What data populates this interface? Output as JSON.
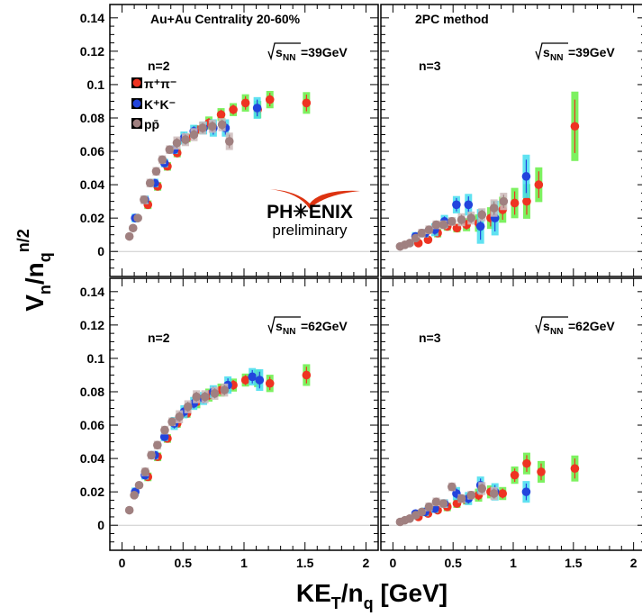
{
  "figure": {
    "xlabel_main": "KE",
    "xlabel_sub": "T",
    "xlabel_rest": "/n",
    "xlabel_sub2": "q",
    "xlabel_unit": " [GeV]",
    "ylabel_main": "V",
    "ylabel_sub": "n",
    "ylabel_rest": "/n",
    "ylabel_sub2": "q",
    "ylabel_sup": "n/2",
    "logo_text": "PH✳ENIX",
    "logo_sub": "preliminary"
  },
  "legend": {
    "pion": "π⁺π⁻",
    "kaon": "K⁺K⁻",
    "proton": "pp̄"
  },
  "colors": {
    "pion": "#ee3322",
    "kaon": "#2244dd",
    "proton": "#a08080",
    "pion_sys": "#66ee44",
    "kaon_sys": "#44ddee",
    "proton_sys": "#ccbbbb",
    "logo_red": "#dd3311"
  },
  "chart_data": [
    {
      "type": "scatter",
      "panel": "top-left",
      "header": "Au+Au Centrality 20-60%",
      "energy": "39GeV",
      "harmonic": "n=2",
      "xlim": [
        -0.1,
        2.1
      ],
      "ylim": [
        -0.015,
        0.148
      ],
      "yticks": [
        "0",
        "0.02",
        "0.04",
        "0.06",
        "0.08",
        "0.1",
        "0.12",
        "0.14"
      ],
      "xticks": [],
      "series": [
        {
          "name": "π⁺π⁻",
          "x": [
            0.2,
            0.28,
            0.36,
            0.44,
            0.52,
            0.6,
            0.7,
            0.8,
            0.9,
            1.0,
            1.1,
            1.2,
            1.5
          ],
          "y": [
            0.028,
            0.039,
            0.051,
            0.059,
            0.068,
            0.073,
            0.077,
            0.082,
            0.085,
            0.089,
            0.085,
            0.091,
            0.089
          ],
          "err": [
            0.002,
            0.002,
            0.002,
            0.002,
            0.002,
            0.002,
            0.003,
            0.003,
            0.003,
            0.004,
            0.004,
            0.004,
            0.005
          ]
        },
        {
          "name": "K⁺K⁻",
          "x": [
            0.12,
            0.2,
            0.28,
            0.36,
            0.44,
            0.52,
            0.6,
            0.68,
            0.76,
            0.86,
            1.12
          ],
          "y": [
            0.02,
            0.031,
            0.041,
            0.053,
            0.061,
            0.068,
            0.072,
            0.074,
            0.074,
            0.074,
            0.086
          ],
          "err": [
            0.002,
            0.002,
            0.002,
            0.002,
            0.002,
            0.003,
            0.003,
            0.003,
            0.004,
            0.004,
            0.005
          ]
        },
        {
          "name": "pp̄",
          "x": [
            0.06,
            0.09,
            0.13,
            0.18,
            0.23,
            0.28,
            0.33,
            0.39,
            0.45,
            0.52,
            0.59,
            0.66,
            0.74,
            0.82,
            0.88
          ],
          "y": [
            0.009,
            0.014,
            0.02,
            0.031,
            0.041,
            0.048,
            0.055,
            0.061,
            0.065,
            0.067,
            0.07,
            0.074,
            0.075,
            0.076,
            0.066
          ],
          "err": [
            0.001,
            0.001,
            0.001,
            0.002,
            0.002,
            0.002,
            0.002,
            0.002,
            0.003,
            0.003,
            0.003,
            0.003,
            0.003,
            0.003,
            0.004
          ]
        }
      ]
    },
    {
      "type": "scatter",
      "panel": "top-right",
      "header": "2PC method",
      "energy": "39GeV",
      "harmonic": "n=3",
      "xlim": [
        -0.1,
        2.1
      ],
      "ylim": [
        -0.015,
        0.148
      ],
      "yticks": [],
      "xticks": [],
      "series": [
        {
          "name": "π⁺π⁻",
          "x": [
            0.2,
            0.28,
            0.36,
            0.44,
            0.52,
            0.6,
            0.7,
            0.8,
            0.9,
            1.0,
            1.1,
            1.2,
            1.5
          ],
          "y": [
            0.005,
            0.007,
            0.011,
            0.015,
            0.014,
            0.016,
            0.017,
            0.02,
            0.025,
            0.029,
            0.03,
            0.04,
            0.075
          ],
          "err": [
            0.001,
            0.001,
            0.002,
            0.002,
            0.002,
            0.003,
            0.004,
            0.005,
            0.006,
            0.007,
            0.008,
            0.008,
            0.016
          ]
        },
        {
          "name": "K⁺K⁻",
          "x": [
            0.2,
            0.28,
            0.36,
            0.44,
            0.54,
            0.64,
            0.74,
            0.86,
            1.12
          ],
          "y": [
            0.009,
            0.011,
            0.013,
            0.018,
            0.028,
            0.028,
            0.015,
            0.02,
            0.045
          ],
          "err": [
            0.002,
            0.002,
            0.003,
            0.003,
            0.004,
            0.005,
            0.008,
            0.008,
            0.01
          ]
        },
        {
          "name": "pp̄",
          "x": [
            0.06,
            0.1,
            0.14,
            0.19,
            0.24,
            0.3,
            0.36,
            0.42,
            0.49,
            0.57,
            0.65,
            0.74,
            0.84,
            0.92
          ],
          "y": [
            0.003,
            0.004,
            0.005,
            0.008,
            0.011,
            0.013,
            0.016,
            0.016,
            0.018,
            0.019,
            0.02,
            0.022,
            0.026,
            0.03
          ],
          "err": [
            0.001,
            0.001,
            0.001,
            0.001,
            0.002,
            0.002,
            0.002,
            0.002,
            0.002,
            0.003,
            0.003,
            0.003,
            0.004,
            0.004
          ]
        }
      ]
    },
    {
      "type": "scatter",
      "panel": "bottom-left",
      "header": "",
      "energy": "62GeV",
      "harmonic": "n=2",
      "xlim": [
        -0.1,
        2.1
      ],
      "ylim": [
        -0.015,
        0.148
      ],
      "yticks": [
        "0",
        "0.02",
        "0.04",
        "0.06",
        "0.08",
        "0.1",
        "0.12",
        "0.14"
      ],
      "xticks": [
        "0",
        "0.5",
        "1",
        "1.5",
        "2"
      ],
      "series": [
        {
          "name": "π⁺π⁻",
          "x": [
            0.2,
            0.28,
            0.36,
            0.44,
            0.52,
            0.6,
            0.7,
            0.8,
            0.9,
            1.0,
            1.1,
            1.2,
            1.5
          ],
          "y": [
            0.029,
            0.041,
            0.052,
            0.061,
            0.067,
            0.074,
            0.078,
            0.081,
            0.084,
            0.087,
            0.088,
            0.085,
            0.09
          ],
          "err": [
            0.002,
            0.002,
            0.002,
            0.002,
            0.002,
            0.003,
            0.003,
            0.003,
            0.003,
            0.003,
            0.004,
            0.004,
            0.005
          ]
        },
        {
          "name": "K⁺K⁻",
          "x": [
            0.12,
            0.2,
            0.28,
            0.36,
            0.44,
            0.52,
            0.6,
            0.68,
            0.76,
            0.88,
            1.08,
            1.14
          ],
          "y": [
            0.02,
            0.03,
            0.042,
            0.053,
            0.061,
            0.068,
            0.073,
            0.076,
            0.08,
            0.084,
            0.089,
            0.087
          ],
          "err": [
            0.002,
            0.002,
            0.002,
            0.002,
            0.003,
            0.003,
            0.003,
            0.003,
            0.003,
            0.004,
            0.004,
            0.005
          ]
        },
        {
          "name": "pp̄",
          "x": [
            0.06,
            0.1,
            0.14,
            0.19,
            0.24,
            0.29,
            0.35,
            0.41,
            0.47,
            0.54,
            0.61,
            0.68,
            0.76,
            0.84
          ],
          "y": [
            0.009,
            0.018,
            0.024,
            0.032,
            0.042,
            0.048,
            0.057,
            0.062,
            0.065,
            0.071,
            0.077,
            0.077,
            0.079,
            0.081
          ],
          "err": [
            0.001,
            0.001,
            0.001,
            0.002,
            0.002,
            0.002,
            0.002,
            0.002,
            0.003,
            0.003,
            0.003,
            0.003,
            0.003,
            0.003
          ]
        }
      ]
    },
    {
      "type": "scatter",
      "panel": "bottom-right",
      "header": "",
      "energy": "62GeV",
      "harmonic": "n=3",
      "xlim": [
        -0.1,
        2.1
      ],
      "ylim": [
        -0.015,
        0.148
      ],
      "yticks": [],
      "xticks": [
        "0",
        "0.5",
        "1",
        "1.5",
        "2"
      ],
      "series": [
        {
          "name": "π⁺π⁻",
          "x": [
            0.2,
            0.28,
            0.36,
            0.44,
            0.52,
            0.6,
            0.7,
            0.8,
            0.9,
            1.0,
            1.1,
            1.22,
            1.5
          ],
          "y": [
            0.005,
            0.007,
            0.009,
            0.011,
            0.013,
            0.015,
            0.018,
            0.02,
            0.019,
            0.03,
            0.037,
            0.032,
            0.034
          ],
          "err": [
            0.001,
            0.001,
            0.001,
            0.002,
            0.002,
            0.002,
            0.003,
            0.003,
            0.003,
            0.004,
            0.005,
            0.005,
            0.006
          ]
        },
        {
          "name": "K⁺K⁻",
          "x": [
            0.2,
            0.28,
            0.36,
            0.44,
            0.54,
            0.64,
            0.74,
            0.86,
            1.12
          ],
          "y": [
            0.007,
            0.008,
            0.01,
            0.013,
            0.019,
            0.016,
            0.024,
            0.02,
            0.02
          ],
          "err": [
            0.001,
            0.002,
            0.002,
            0.002,
            0.003,
            0.003,
            0.004,
            0.004,
            0.005
          ]
        },
        {
          "name": "pp̄",
          "x": [
            0.06,
            0.1,
            0.14,
            0.19,
            0.24,
            0.3,
            0.36,
            0.42,
            0.49,
            0.57,
            0.65,
            0.74,
            0.84
          ],
          "y": [
            0.002,
            0.003,
            0.004,
            0.006,
            0.008,
            0.011,
            0.014,
            0.013,
            0.023,
            0.016,
            0.018,
            0.022,
            0.019
          ],
          "err": [
            0.001,
            0.001,
            0.001,
            0.001,
            0.001,
            0.002,
            0.002,
            0.002,
            0.002,
            0.002,
            0.002,
            0.003,
            0.003
          ]
        }
      ]
    }
  ]
}
